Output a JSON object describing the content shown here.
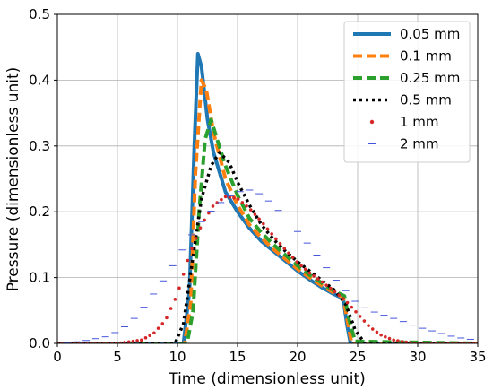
{
  "chart_data": {
    "type": "line",
    "title": "",
    "xlabel": "Time (dimensionless unit)",
    "ylabel": "Pressure (dimensionless unit)",
    "xlim": [
      0,
      35
    ],
    "ylim": [
      0,
      0.5
    ],
    "xticks": [
      0,
      5,
      10,
      15,
      20,
      25,
      30,
      35
    ],
    "yticks": [
      0.0,
      0.1,
      0.2,
      0.3,
      0.4,
      0.5
    ],
    "xtick_labels": [
      "0",
      "5",
      "10",
      "15",
      "20",
      "25",
      "30",
      "35"
    ],
    "ytick_labels": [
      "0.0",
      "0.1",
      "0.2",
      "0.3",
      "0.4",
      "0.5"
    ],
    "grid": true,
    "legend_position": "top-right",
    "series": [
      {
        "name": "0.05 mm",
        "style": "solid",
        "color": "#1f77b4",
        "points": [
          [
            0,
            0
          ],
          [
            10.5,
            0
          ],
          [
            11,
            0.08
          ],
          [
            11.4,
            0.3
          ],
          [
            11.7,
            0.44
          ],
          [
            12.0,
            0.42
          ],
          [
            12.5,
            0.34
          ],
          [
            13,
            0.29
          ],
          [
            14,
            0.23
          ],
          [
            15,
            0.2
          ],
          [
            16,
            0.175
          ],
          [
            17,
            0.155
          ],
          [
            18,
            0.14
          ],
          [
            19,
            0.125
          ],
          [
            20,
            0.11
          ],
          [
            21,
            0.097
          ],
          [
            22,
            0.085
          ],
          [
            23,
            0.075
          ],
          [
            23.8,
            0.068
          ],
          [
            24.1,
            0.03
          ],
          [
            24.4,
            0
          ],
          [
            35,
            0
          ]
        ]
      },
      {
        "name": "0.1 mm",
        "style": "dashed",
        "color": "#ff7f0e",
        "points": [
          [
            0,
            0
          ],
          [
            10.6,
            0
          ],
          [
            11.1,
            0.06
          ],
          [
            11.5,
            0.26
          ],
          [
            12.0,
            0.4
          ],
          [
            12.4,
            0.385
          ],
          [
            13,
            0.32
          ],
          [
            14,
            0.25
          ],
          [
            15,
            0.21
          ],
          [
            16,
            0.18
          ],
          [
            17,
            0.16
          ],
          [
            18,
            0.143
          ],
          [
            19,
            0.128
          ],
          [
            20,
            0.113
          ],
          [
            21,
            0.1
          ],
          [
            22,
            0.088
          ],
          [
            23,
            0.077
          ],
          [
            23.8,
            0.07
          ],
          [
            24.2,
            0.03
          ],
          [
            24.5,
            0
          ],
          [
            35,
            0
          ]
        ]
      },
      {
        "name": "0.25 mm",
        "style": "dashed",
        "color": "#2ca02c",
        "points": [
          [
            0,
            0
          ],
          [
            10.8,
            0
          ],
          [
            11.3,
            0.05
          ],
          [
            11.8,
            0.2
          ],
          [
            12.3,
            0.31
          ],
          [
            12.8,
            0.34
          ],
          [
            13.3,
            0.31
          ],
          [
            14,
            0.27
          ],
          [
            15,
            0.225
          ],
          [
            16,
            0.19
          ],
          [
            17,
            0.168
          ],
          [
            18,
            0.15
          ],
          [
            19,
            0.134
          ],
          [
            20,
            0.118
          ],
          [
            21,
            0.104
          ],
          [
            22,
            0.092
          ],
          [
            23,
            0.08
          ],
          [
            23.9,
            0.072
          ],
          [
            24.3,
            0.035
          ],
          [
            24.8,
            0.003
          ],
          [
            35,
            0
          ]
        ]
      },
      {
        "name": "0.5 mm",
        "style": "dotted",
        "color": "#000000",
        "points": [
          [
            0,
            0
          ],
          [
            9.8,
            0
          ],
          [
            10.5,
            0.03
          ],
          [
            11.2,
            0.12
          ],
          [
            12.0,
            0.22
          ],
          [
            12.8,
            0.27
          ],
          [
            13.5,
            0.29
          ],
          [
            14.3,
            0.275
          ],
          [
            15,
            0.245
          ],
          [
            16,
            0.21
          ],
          [
            17,
            0.18
          ],
          [
            18,
            0.158
          ],
          [
            19,
            0.14
          ],
          [
            20,
            0.124
          ],
          [
            21,
            0.11
          ],
          [
            22,
            0.096
          ],
          [
            23,
            0.082
          ],
          [
            24,
            0.06
          ],
          [
            24.8,
            0.02
          ],
          [
            25.6,
            0
          ],
          [
            35,
            0
          ]
        ]
      },
      {
        "name": "1 mm",
        "style": "points",
        "color": "#d62728",
        "points": [
          [
            0,
            0
          ],
          [
            5,
            0
          ],
          [
            7,
            0.005
          ],
          [
            8,
            0.015
          ],
          [
            9,
            0.035
          ],
          [
            10,
            0.075
          ],
          [
            11,
            0.135
          ],
          [
            12,
            0.18
          ],
          [
            13,
            0.21
          ],
          [
            14,
            0.223
          ],
          [
            15,
            0.22
          ],
          [
            16,
            0.205
          ],
          [
            17,
            0.185
          ],
          [
            18,
            0.163
          ],
          [
            19,
            0.142
          ],
          [
            20,
            0.123
          ],
          [
            21,
            0.107
          ],
          [
            22,
            0.094
          ],
          [
            23,
            0.08
          ],
          [
            24,
            0.065
          ],
          [
            25,
            0.045
          ],
          [
            26,
            0.025
          ],
          [
            27,
            0.012
          ],
          [
            28,
            0.005
          ],
          [
            29,
            0.002
          ],
          [
            30,
            0
          ],
          [
            35,
            0
          ]
        ]
      },
      {
        "name": "2 mm",
        "style": "dashes",
        "color": "#4455dd",
        "points": [
          [
            0,
            0
          ],
          [
            2,
            0.003
          ],
          [
            4,
            0.01
          ],
          [
            5,
            0.018
          ],
          [
            6,
            0.03
          ],
          [
            7,
            0.05
          ],
          [
            8,
            0.075
          ],
          [
            9,
            0.1
          ],
          [
            10,
            0.13
          ],
          [
            11,
            0.16
          ],
          [
            12,
            0.185
          ],
          [
            13,
            0.205
          ],
          [
            14,
            0.22
          ],
          [
            15,
            0.23
          ],
          [
            16,
            0.233
          ],
          [
            17,
            0.226
          ],
          [
            18,
            0.21
          ],
          [
            19,
            0.19
          ],
          [
            20,
            0.17
          ],
          [
            21,
            0.148
          ],
          [
            22,
            0.125
          ],
          [
            23,
            0.1
          ],
          [
            24,
            0.08
          ],
          [
            25,
            0.06
          ],
          [
            26,
            0.05
          ],
          [
            27,
            0.044
          ],
          [
            28,
            0.038
          ],
          [
            29,
            0.032
          ],
          [
            30,
            0.025
          ],
          [
            31,
            0.02
          ],
          [
            32,
            0.015
          ],
          [
            33,
            0.01
          ],
          [
            34,
            0.007
          ],
          [
            35,
            0.005
          ]
        ]
      }
    ]
  }
}
